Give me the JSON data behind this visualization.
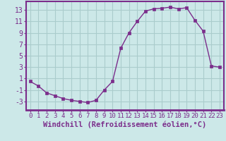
{
  "hours": [
    0,
    1,
    2,
    3,
    4,
    5,
    6,
    7,
    8,
    9,
    10,
    11,
    12,
    13,
    14,
    15,
    16,
    17,
    18,
    19,
    20,
    21,
    22,
    23
  ],
  "values": [
    0.5,
    -0.3,
    -1.5,
    -2.0,
    -2.5,
    -2.8,
    -3.0,
    -3.2,
    -2.8,
    -1.0,
    0.5,
    6.3,
    9.0,
    11.0,
    12.8,
    13.2,
    13.3,
    13.5,
    13.2,
    13.4,
    11.2,
    9.3,
    3.2,
    3.0
  ],
  "line_color": "#7b2d8b",
  "marker": "s",
  "marker_size": 2.5,
  "bg_color": "#cce8e8",
  "grid_color": "#aacccc",
  "xlabel": "Windchill (Refroidissement éolien,°C)",
  "xlim": [
    -0.5,
    23.5
  ],
  "ylim": [
    -4.5,
    14.5
  ],
  "yticks": [
    -3,
    -1,
    1,
    3,
    5,
    7,
    9,
    11,
    13
  ],
  "xticks": [
    0,
    1,
    2,
    3,
    4,
    5,
    6,
    7,
    8,
    9,
    10,
    11,
    12,
    13,
    14,
    15,
    16,
    17,
    18,
    19,
    20,
    21,
    22,
    23
  ],
  "xlabel_fontsize": 7.5,
  "ytick_fontsize": 7,
  "xtick_fontsize": 6.5,
  "spine_color": "#7b2d8b",
  "spine_lw": 1.5,
  "line_width": 1.0
}
